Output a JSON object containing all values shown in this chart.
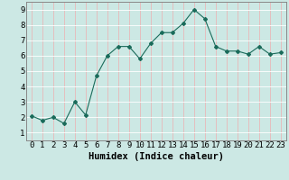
{
  "x": [
    0,
    1,
    2,
    3,
    4,
    5,
    6,
    7,
    8,
    9,
    10,
    11,
    12,
    13,
    14,
    15,
    16,
    17,
    18,
    19,
    20,
    21,
    22,
    23
  ],
  "y": [
    2.1,
    1.8,
    2.0,
    1.6,
    3.0,
    2.15,
    4.7,
    6.0,
    6.6,
    6.6,
    5.8,
    6.8,
    7.5,
    7.5,
    8.1,
    9.0,
    8.4,
    6.6,
    6.3,
    6.3,
    6.1,
    6.6,
    6.1,
    6.2
  ],
  "xlabel": "Humidex (Indice chaleur)",
  "ylim": [
    0.5,
    9.5
  ],
  "xlim": [
    -0.5,
    23.5
  ],
  "yticks": [
    1,
    2,
    3,
    4,
    5,
    6,
    7,
    8,
    9
  ],
  "xticks": [
    0,
    1,
    2,
    3,
    4,
    5,
    6,
    7,
    8,
    9,
    10,
    11,
    12,
    13,
    14,
    15,
    16,
    17,
    18,
    19,
    20,
    21,
    22,
    23
  ],
  "line_color": "#1a6b5a",
  "marker_color": "#1a6b5a",
  "bg_color": "#cce8e4",
  "grid_color_v": "#e8b8b8",
  "grid_color_h": "#ffffff",
  "xlabel_fontsize": 7.5,
  "tick_fontsize": 6.5,
  "spine_color": "#888888"
}
